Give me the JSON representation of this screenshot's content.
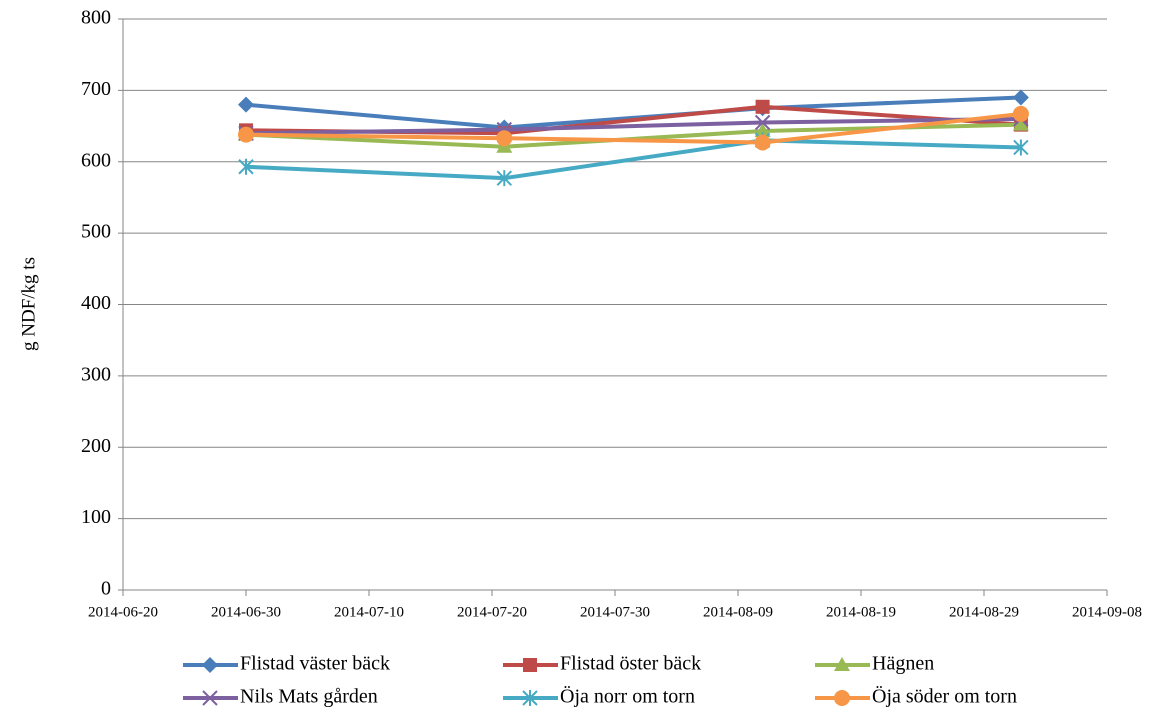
{
  "chart_data": {
    "type": "line",
    "y_label": "g NDF/kg ts",
    "x": [
      "2014-06-30",
      "2014-07-21",
      "2014-08-11",
      "2014-09-01"
    ],
    "xlim": [
      "2014-06-20",
      "2014-09-08"
    ],
    "xticks": [
      "2014-06-20",
      "2014-06-30",
      "2014-07-10",
      "2014-07-20",
      "2014-07-30",
      "2014-08-09",
      "2014-08-19",
      "2014-08-29",
      "2014-09-08"
    ],
    "ylim": [
      0,
      800
    ],
    "yticks": [
      0,
      100,
      200,
      300,
      400,
      500,
      600,
      700,
      800
    ],
    "grid": true,
    "legend": "bottom",
    "series": [
      {
        "name": "Flistad väster bäck",
        "color": "#4a7ebb",
        "marker": "diamond",
        "values": [
          680,
          648,
          675,
          690
        ]
      },
      {
        "name": "Flistad öster bäck",
        "color": "#be4b48",
        "marker": "square",
        "values": [
          644,
          640,
          677,
          652
        ]
      },
      {
        "name": "Hägnen",
        "color": "#98b954",
        "marker": "triangle",
        "values": [
          638,
          621,
          643,
          652
        ]
      },
      {
        "name": "Nils Mats gården",
        "color": "#7d60a0",
        "marker": "x",
        "values": [
          640,
          645,
          655,
          660
        ]
      },
      {
        "name": "Öja norr om torn",
        "color": "#46aac5",
        "marker": "star",
        "values": [
          593,
          577,
          630,
          620
        ]
      },
      {
        "name": "Öja söder om torn",
        "color": "#f79646",
        "marker": "circle",
        "values": [
          638,
          633,
          627,
          667
        ]
      }
    ]
  }
}
